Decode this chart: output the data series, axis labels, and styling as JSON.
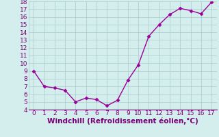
{
  "x": [
    0,
    1,
    2,
    3,
    4,
    5,
    6,
    7,
    8,
    9,
    10,
    11,
    12,
    13,
    14,
    15,
    16,
    17
  ],
  "y": [
    9.0,
    7.0,
    6.8,
    6.5,
    5.0,
    5.5,
    5.3,
    4.5,
    5.2,
    7.8,
    9.8,
    13.5,
    15.0,
    16.3,
    17.1,
    16.8,
    16.4,
    17.9
  ],
  "line_color": "#990099",
  "marker": "D",
  "marker_size": 2.5,
  "xlabel": "Windchill (Refroidissement éolien,°C)",
  "xlabel_fontsize": 7.5,
  "ylim": [
    4,
    18
  ],
  "xlim": [
    -0.5,
    17.5
  ],
  "yticks": [
    4,
    5,
    6,
    7,
    8,
    9,
    10,
    11,
    12,
    13,
    14,
    15,
    16,
    17,
    18
  ],
  "xticks": [
    0,
    1,
    2,
    3,
    4,
    5,
    6,
    7,
    8,
    9,
    10,
    11,
    12,
    13,
    14,
    15,
    16,
    17
  ],
  "background_color": "#d4eeed",
  "grid_color": "#aacccc",
  "tick_fontsize": 6.5,
  "line_width": 1.0,
  "text_color": "#770077"
}
